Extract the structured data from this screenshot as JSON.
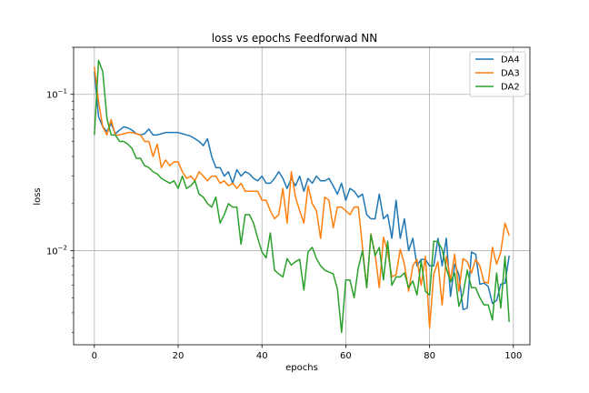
{
  "chart_data": {
    "type": "line",
    "title": "loss vs epochs Feedforwad NN",
    "xlabel": "epochs",
    "ylabel": "loss",
    "xlim": [
      -4.95,
      103.95
    ],
    "ylim": [
      0.0025,
      0.2
    ],
    "yscale": "log",
    "grid": true,
    "legend": "top-right",
    "x_ticks": [
      0,
      20,
      40,
      60,
      80,
      100
    ],
    "y_ticks": [
      {
        "value": 0.1,
        "base": "10",
        "exp": "−1"
      },
      {
        "value": 0.01,
        "base": "10",
        "exp": "−2"
      }
    ],
    "series": [
      {
        "name": "DA4",
        "color": "#1f77b4",
        "values": [
          0.14,
          0.072,
          0.062,
          0.058,
          0.065,
          0.056,
          0.059,
          0.062,
          0.061,
          0.059,
          0.056,
          0.055,
          0.056,
          0.06,
          0.055,
          0.055,
          0.056,
          0.057,
          0.057,
          0.057,
          0.057,
          0.056,
          0.055,
          0.054,
          0.052,
          0.05,
          0.047,
          0.052,
          0.04,
          0.034,
          0.034,
          0.03,
          0.032,
          0.027,
          0.033,
          0.03,
          0.032,
          0.031,
          0.029,
          0.028,
          0.03,
          0.027,
          0.027,
          0.029,
          0.032,
          0.029,
          0.025,
          0.029,
          0.026,
          0.03,
          0.024,
          0.029,
          0.027,
          0.03,
          0.028,
          0.028,
          0.029,
          0.026,
          0.023,
          0.027,
          0.021,
          0.025,
          0.024,
          0.022,
          0.023,
          0.017,
          0.016,
          0.016,
          0.023,
          0.016,
          0.017,
          0.012,
          0.021,
          0.012,
          0.016,
          0.01,
          0.012,
          0.008,
          0.0088,
          0.0088,
          0.008,
          0.008,
          0.012,
          0.008,
          0.012,
          0.0051,
          0.0082,
          0.007,
          0.0042,
          0.0043,
          0.0098,
          0.0095,
          0.0061,
          0.0062,
          0.0059,
          0.0046,
          0.0048,
          0.0061,
          0.0062,
          0.0093
        ]
      },
      {
        "name": "DA3",
        "color": "#ff7f0e",
        "values": [
          0.15,
          0.09,
          0.062,
          0.055,
          0.069,
          0.055,
          0.055,
          0.056,
          0.057,
          0.057,
          0.056,
          0.055,
          0.05,
          0.05,
          0.04,
          0.048,
          0.034,
          0.038,
          0.035,
          0.037,
          0.037,
          0.032,
          0.029,
          0.03,
          0.028,
          0.032,
          0.03,
          0.028,
          0.03,
          0.03,
          0.027,
          0.028,
          0.026,
          0.027,
          0.025,
          0.027,
          0.024,
          0.024,
          0.024,
          0.024,
          0.021,
          0.021,
          0.018,
          0.016,
          0.017,
          0.025,
          0.015,
          0.032,
          0.022,
          0.018,
          0.015,
          0.026,
          0.02,
          0.018,
          0.012,
          0.022,
          0.021,
          0.014,
          0.019,
          0.019,
          0.018,
          0.017,
          0.019,
          0.019,
          0.0105,
          0.0058,
          0.0128,
          0.0095,
          0.0058,
          0.0122,
          0.0098,
          0.0068,
          0.007,
          0.0102,
          0.0082,
          0.0055,
          0.008,
          0.0088,
          0.006,
          0.0092,
          0.0032,
          0.0071,
          0.0085,
          0.0045,
          0.0092,
          0.0065,
          0.0095,
          0.0055,
          0.0089,
          0.0085,
          0.0072,
          0.0088,
          0.008,
          0.0063,
          0.0062,
          0.0105,
          0.0082,
          0.0098,
          0.015,
          0.0125
        ]
      },
      {
        "name": "DA2",
        "color": "#2ca02c",
        "values": [
          0.055,
          0.165,
          0.14,
          0.07,
          0.055,
          0.055,
          0.05,
          0.05,
          0.048,
          0.045,
          0.039,
          0.039,
          0.035,
          0.034,
          0.032,
          0.031,
          0.029,
          0.028,
          0.027,
          0.028,
          0.025,
          0.03,
          0.025,
          0.026,
          0.028,
          0.023,
          0.022,
          0.02,
          0.019,
          0.022,
          0.015,
          0.017,
          0.02,
          0.019,
          0.019,
          0.011,
          0.017,
          0.017,
          0.015,
          0.012,
          0.0098,
          0.009,
          0.013,
          0.0075,
          0.0071,
          0.0068,
          0.0089,
          0.0081,
          0.0085,
          0.0088,
          0.0056,
          0.0098,
          0.0105,
          0.0089,
          0.008,
          0.0075,
          0.0073,
          0.0071,
          0.0057,
          0.003,
          0.0065,
          0.0065,
          0.005,
          0.0078,
          0.01,
          0.0058,
          0.0127,
          0.0093,
          0.0105,
          0.0065,
          0.0115,
          0.006,
          0.0068,
          0.0068,
          0.0072,
          0.0058,
          0.0064,
          0.0052,
          0.0086,
          0.0055,
          0.0052,
          0.0115,
          0.0114,
          0.0102,
          0.0077,
          0.0063,
          0.0072,
          0.0044,
          0.0053,
          0.0075,
          0.0058,
          0.0058,
          0.005,
          0.0045,
          0.0045,
          0.0036,
          0.0072,
          0.0043,
          0.0092,
          0.0035
        ]
      }
    ]
  }
}
